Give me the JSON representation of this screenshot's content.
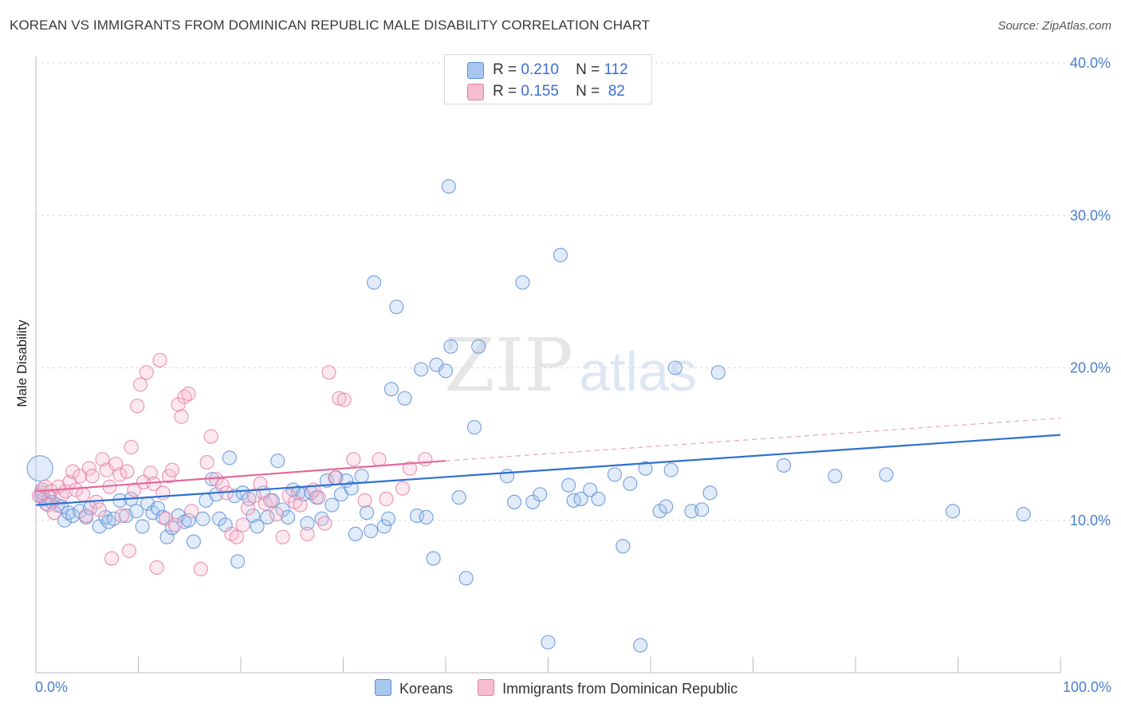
{
  "chart_data": {
    "type": "scatter",
    "title": "KOREAN VS IMMIGRANTS FROM DOMINICAN REPUBLIC MALE DISABILITY CORRELATION CHART",
    "source": "Source: ZipAtlas.com",
    "watermark": {
      "main": "ZIP",
      "sub": "atlas"
    },
    "xlabel": "",
    "ylabel": "Male Disability",
    "xlim": [
      0,
      100
    ],
    "ylim": [
      0,
      42
    ],
    "x_tick_labels": [
      "0.0%",
      "100.0%"
    ],
    "y_ticks": [
      10,
      20,
      30,
      40
    ],
    "y_tick_labels": [
      "10.0%",
      "20.0%",
      "30.0%",
      "40.0%"
    ],
    "grid": true,
    "legend_top": [
      {
        "r_label": "R =",
        "r_value": "0.210",
        "n_label": "N =",
        "n_value": "112"
      },
      {
        "r_label": "R =",
        "r_value": "0.155",
        "n_label": "N =",
        "n_value": " 82"
      }
    ],
    "series": [
      {
        "name": "Koreans",
        "color": "#5b8fd8",
        "fill": "#a9c6ef",
        "trend": {
          "x0": 0,
          "y0": 11.0,
          "x1": 100,
          "y1": 15.6
        },
        "points": [
          [
            0.4,
            13.4
          ],
          [
            0.5,
            11.6
          ],
          [
            0.6,
            12.0
          ],
          [
            0.8,
            11.4
          ],
          [
            1.0,
            11.1
          ],
          [
            1.3,
            11.5
          ],
          [
            1.6,
            11.2
          ],
          [
            2.1,
            11.0
          ],
          [
            2.5,
            10.9
          ],
          [
            2.8,
            10.0
          ],
          [
            3.2,
            10.5
          ],
          [
            3.6,
            10.3
          ],
          [
            4.3,
            10.6
          ],
          [
            4.9,
            10.2
          ],
          [
            5.3,
            10.8
          ],
          [
            6.2,
            9.6
          ],
          [
            6.8,
            10.2
          ],
          [
            7.1,
            9.9
          ],
          [
            7.6,
            10.1
          ],
          [
            8.2,
            11.3
          ],
          [
            8.8,
            10.3
          ],
          [
            9.3,
            11.4
          ],
          [
            9.8,
            10.6
          ],
          [
            10.4,
            9.6
          ],
          [
            10.9,
            11.1
          ],
          [
            11.4,
            10.5
          ],
          [
            11.9,
            10.8
          ],
          [
            12.4,
            10.2
          ],
          [
            12.8,
            8.9
          ],
          [
            13.3,
            9.5
          ],
          [
            13.9,
            10.3
          ],
          [
            14.5,
            9.9
          ],
          [
            14.9,
            10.0
          ],
          [
            15.4,
            8.6
          ],
          [
            16.3,
            10.1
          ],
          [
            16.6,
            11.3
          ],
          [
            17.2,
            12.7
          ],
          [
            17.6,
            11.7
          ],
          [
            17.9,
            10.1
          ],
          [
            18.5,
            9.7
          ],
          [
            18.9,
            14.1
          ],
          [
            19.4,
            11.6
          ],
          [
            19.7,
            7.3
          ],
          [
            20.2,
            11.8
          ],
          [
            20.8,
            11.4
          ],
          [
            21.2,
            10.3
          ],
          [
            21.6,
            9.6
          ],
          [
            22.2,
            11.8
          ],
          [
            22.6,
            10.2
          ],
          [
            23.1,
            11.3
          ],
          [
            23.6,
            13.9
          ],
          [
            24.1,
            10.7
          ],
          [
            24.6,
            10.2
          ],
          [
            25.1,
            12.0
          ],
          [
            25.6,
            11.8
          ],
          [
            26.1,
            11.7
          ],
          [
            26.5,
            9.8
          ],
          [
            26.9,
            11.8
          ],
          [
            27.4,
            11.5
          ],
          [
            27.9,
            10.1
          ],
          [
            28.4,
            12.6
          ],
          [
            28.9,
            11.0
          ],
          [
            29.3,
            12.8
          ],
          [
            29.8,
            11.7
          ],
          [
            30.3,
            12.6
          ],
          [
            30.8,
            12.1
          ],
          [
            31.2,
            9.1
          ],
          [
            31.8,
            12.9
          ],
          [
            32.3,
            10.5
          ],
          [
            32.7,
            9.3
          ],
          [
            33.0,
            25.6
          ],
          [
            34.0,
            9.6
          ],
          [
            34.4,
            10.1
          ],
          [
            34.7,
            18.6
          ],
          [
            35.2,
            24.0
          ],
          [
            36.0,
            18.0
          ],
          [
            37.2,
            10.3
          ],
          [
            37.6,
            19.9
          ],
          [
            38.1,
            10.2
          ],
          [
            38.8,
            7.5
          ],
          [
            39.1,
            20.2
          ],
          [
            40.0,
            19.8
          ],
          [
            40.3,
            31.9
          ],
          [
            40.5,
            21.4
          ],
          [
            41.3,
            11.5
          ],
          [
            42.0,
            6.2
          ],
          [
            42.8,
            16.1
          ],
          [
            43.2,
            21.4
          ],
          [
            46.0,
            12.9
          ],
          [
            46.7,
            11.2
          ],
          [
            47.5,
            25.6
          ],
          [
            48.5,
            11.2
          ],
          [
            49.2,
            11.7
          ],
          [
            50.0,
            2.0
          ],
          [
            51.2,
            27.4
          ],
          [
            52.0,
            12.3
          ],
          [
            52.5,
            11.3
          ],
          [
            53.2,
            11.4
          ],
          [
            54.1,
            12.0
          ],
          [
            54.9,
            11.4
          ],
          [
            56.5,
            13.0
          ],
          [
            57.3,
            8.3
          ],
          [
            58.0,
            12.4
          ],
          [
            59.0,
            1.8
          ],
          [
            59.5,
            13.4
          ],
          [
            60.9,
            10.6
          ],
          [
            61.5,
            10.9
          ],
          [
            62.0,
            13.3
          ],
          [
            62.4,
            20.0
          ],
          [
            64.0,
            10.6
          ],
          [
            65.0,
            10.7
          ],
          [
            65.8,
            11.8
          ],
          [
            66.6,
            19.7
          ],
          [
            73.0,
            13.6
          ],
          [
            78.0,
            12.9
          ],
          [
            83.0,
            13.0
          ],
          [
            89.5,
            10.6
          ],
          [
            96.4,
            10.4
          ]
        ]
      },
      {
        "name": "Immigrants from Dominican Republic",
        "color": "#e77fa5",
        "fill": "#f6bcd0",
        "trend": {
          "x0": 0,
          "y0": 11.9,
          "x1": 40,
          "y1": 13.9
        },
        "trend_dashed": {
          "x0": 40,
          "y0": 13.9,
          "x1": 100,
          "y1": 16.7
        },
        "points": [
          [
            0.3,
            11.6
          ],
          [
            0.6,
            11.8
          ],
          [
            0.9,
            12.2
          ],
          [
            1.2,
            11.0
          ],
          [
            1.5,
            11.9
          ],
          [
            1.8,
            10.5
          ],
          [
            2.2,
            12.2
          ],
          [
            2.5,
            11.6
          ],
          [
            2.9,
            11.9
          ],
          [
            3.3,
            12.5
          ],
          [
            3.6,
            13.2
          ],
          [
            3.9,
            12.0
          ],
          [
            4.3,
            12.9
          ],
          [
            4.6,
            11.7
          ],
          [
            4.9,
            10.3
          ],
          [
            5.2,
            13.4
          ],
          [
            5.5,
            12.9
          ],
          [
            5.9,
            11.2
          ],
          [
            6.2,
            10.7
          ],
          [
            6.5,
            14.0
          ],
          [
            6.9,
            13.3
          ],
          [
            7.2,
            12.2
          ],
          [
            7.4,
            7.5
          ],
          [
            7.8,
            13.7
          ],
          [
            8.2,
            13.0
          ],
          [
            8.4,
            10.3
          ],
          [
            8.9,
            13.2
          ],
          [
            9.1,
            8.0
          ],
          [
            9.3,
            14.8
          ],
          [
            9.6,
            12.0
          ],
          [
            9.9,
            17.5
          ],
          [
            10.2,
            18.9
          ],
          [
            10.5,
            12.5
          ],
          [
            10.8,
            19.7
          ],
          [
            11.2,
            13.1
          ],
          [
            11.5,
            12.4
          ],
          [
            11.8,
            6.9
          ],
          [
            12.1,
            20.5
          ],
          [
            12.4,
            11.8
          ],
          [
            12.7,
            10.1
          ],
          [
            13.0,
            12.9
          ],
          [
            13.3,
            13.3
          ],
          [
            13.6,
            9.7
          ],
          [
            13.9,
            17.6
          ],
          [
            14.2,
            16.8
          ],
          [
            14.5,
            18.1
          ],
          [
            14.9,
            18.3
          ],
          [
            15.2,
            10.6
          ],
          [
            16.1,
            6.8
          ],
          [
            16.7,
            13.8
          ],
          [
            17.1,
            15.5
          ],
          [
            17.6,
            12.7
          ],
          [
            18.2,
            12.3
          ],
          [
            18.6,
            11.8
          ],
          [
            19.1,
            9.1
          ],
          [
            19.6,
            8.9
          ],
          [
            20.2,
            9.7
          ],
          [
            20.7,
            10.8
          ],
          [
            21.3,
            11.6
          ],
          [
            21.9,
            12.4
          ],
          [
            22.4,
            11.1
          ],
          [
            22.9,
            11.3
          ],
          [
            23.5,
            10.4
          ],
          [
            24.1,
            8.9
          ],
          [
            24.7,
            11.6
          ],
          [
            25.3,
            11.2
          ],
          [
            25.8,
            11.0
          ],
          [
            26.5,
            9.1
          ],
          [
            27.1,
            12.0
          ],
          [
            27.6,
            11.5
          ],
          [
            28.2,
            9.8
          ],
          [
            28.6,
            19.7
          ],
          [
            29.2,
            12.8
          ],
          [
            29.6,
            18.0
          ],
          [
            30.1,
            17.9
          ],
          [
            31.0,
            14.0
          ],
          [
            32.1,
            11.3
          ],
          [
            33.5,
            14.0
          ],
          [
            34.2,
            11.4
          ],
          [
            35.8,
            12.1
          ],
          [
            36.5,
            13.4
          ],
          [
            38.0,
            14.0
          ]
        ]
      }
    ]
  }
}
